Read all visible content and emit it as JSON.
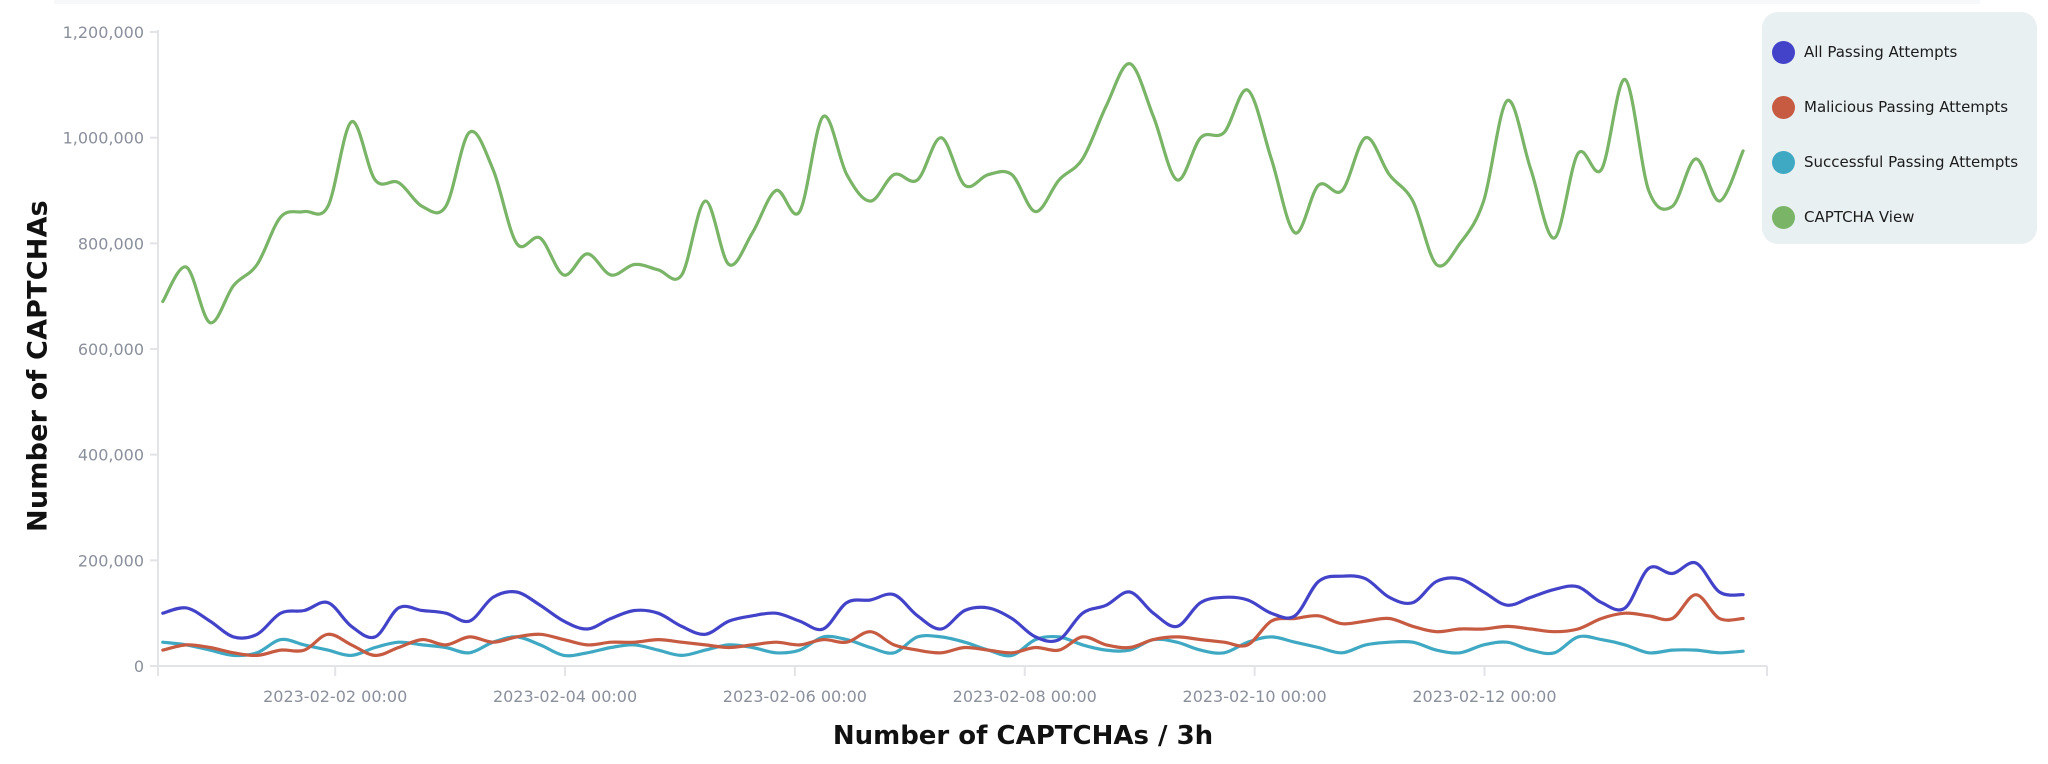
{
  "chart_data": {
    "type": "line",
    "title": "",
    "xlabel": "Number of CAPTCHAs / 3h",
    "ylabel": "Number of CAPTCHAs",
    "ylim": [
      0,
      1200000
    ],
    "y_ticks": [
      "0",
      "200,000",
      "400,000",
      "600,000",
      "800,000",
      "1,000,000",
      "1,200,000"
    ],
    "y_tick_values": [
      0,
      200000,
      400000,
      600000,
      800000,
      1000000,
      1200000
    ],
    "x_ticks": [
      "2023-02-02 00:00",
      "2023-02-04 00:00",
      "2023-02-06 00:00",
      "2023-02-08 00:00",
      "2023-02-10 00:00",
      "2023-02-12 00:00"
    ],
    "x_range": [
      "2023-01-31 11:00",
      "2023-02-14 11:00"
    ],
    "x_data_range": [
      "2023-01-31 12:00",
      "2023-02-14 06:00"
    ],
    "grid": false,
    "legend_position": "top-right",
    "series": [
      {
        "name": "All Passing Attempts",
        "color": "#4343c9",
        "values": [
          100000,
          110000,
          85000,
          55000,
          60000,
          100000,
          105000,
          120000,
          75000,
          55000,
          110000,
          105000,
          100000,
          85000,
          130000,
          140000,
          115000,
          85000,
          70000,
          90000,
          105000,
          100000,
          75000,
          60000,
          85000,
          95000,
          100000,
          85000,
          70000,
          120000,
          125000,
          135000,
          95000,
          70000,
          105000,
          110000,
          90000,
          55000,
          50000,
          100000,
          115000,
          140000,
          100000,
          75000,
          120000,
          130000,
          125000,
          100000,
          95000,
          160000,
          170000,
          165000,
          130000,
          120000,
          160000,
          165000,
          140000,
          115000,
          130000,
          145000,
          150000,
          120000,
          110000,
          185000,
          175000,
          195000,
          140000,
          135000
        ]
      },
      {
        "name": "Malicious Passing Attempts",
        "color": "#c65b42",
        "values": [
          30000,
          40000,
          35000,
          25000,
          20000,
          30000,
          30000,
          60000,
          40000,
          20000,
          35000,
          50000,
          40000,
          55000,
          45000,
          55000,
          60000,
          50000,
          40000,
          45000,
          45000,
          50000,
          45000,
          40000,
          35000,
          40000,
          45000,
          40000,
          50000,
          45000,
          65000,
          40000,
          30000,
          25000,
          35000,
          30000,
          25000,
          35000,
          30000,
          55000,
          40000,
          35000,
          50000,
          55000,
          50000,
          45000,
          40000,
          85000,
          90000,
          95000,
          80000,
          85000,
          90000,
          75000,
          65000,
          70000,
          70000,
          75000,
          70000,
          65000,
          70000,
          90000,
          100000,
          95000,
          90000,
          135000,
          90000,
          90000
        ]
      },
      {
        "name": "Successful Passing Attempts",
        "color": "#3fa8c3",
        "values": [
          45000,
          40000,
          30000,
          20000,
          25000,
          50000,
          40000,
          30000,
          20000,
          35000,
          45000,
          40000,
          35000,
          25000,
          45000,
          55000,
          40000,
          20000,
          25000,
          35000,
          40000,
          30000,
          20000,
          30000,
          40000,
          35000,
          25000,
          30000,
          55000,
          50000,
          35000,
          25000,
          55000,
          55000,
          45000,
          30000,
          20000,
          50000,
          55000,
          40000,
          30000,
          30000,
          50000,
          45000,
          30000,
          25000,
          45000,
          55000,
          45000,
          35000,
          25000,
          40000,
          45000,
          45000,
          30000,
          25000,
          40000,
          45000,
          30000,
          25000,
          55000,
          50000,
          40000,
          25000,
          30000,
          30000,
          25000,
          28000
        ]
      },
      {
        "name": "CAPTCHA View",
        "color": "#79b467",
        "values": [
          690000,
          755000,
          650000,
          720000,
          760000,
          850000,
          860000,
          870000,
          1030000,
          920000,
          915000,
          870000,
          870000,
          1010000,
          940000,
          800000,
          810000,
          740000,
          780000,
          740000,
          760000,
          750000,
          740000,
          880000,
          760000,
          820000,
          900000,
          860000,
          1040000,
          930000,
          880000,
          930000,
          920000,
          1000000,
          910000,
          930000,
          930000,
          860000,
          920000,
          960000,
          1060000,
          1140000,
          1040000,
          920000,
          1000000,
          1010000,
          1090000,
          960000,
          820000,
          910000,
          900000,
          1000000,
          930000,
          880000,
          760000,
          800000,
          880000,
          1070000,
          940000,
          810000,
          970000,
          940000,
          1110000,
          900000,
          870000,
          960000,
          880000,
          975000
        ]
      }
    ]
  },
  "axes": {
    "y_title": "Number of CAPTCHAs",
    "x_title": "Number of CAPTCHAs / 3h"
  },
  "legend": {
    "items": [
      {
        "label": "All Passing Attempts",
        "color": "#4343c9",
        "icon": "circle-dot"
      },
      {
        "label": "Malicious Passing Attempts",
        "color": "#c65b42",
        "icon": "circle-dot"
      },
      {
        "label": "Successful Passing Attempts",
        "color": "#3fa8c3",
        "icon": "circle-dot"
      },
      {
        "label": "CAPTCHA View",
        "color": "#79b467",
        "icon": "circle-dot"
      }
    ]
  }
}
